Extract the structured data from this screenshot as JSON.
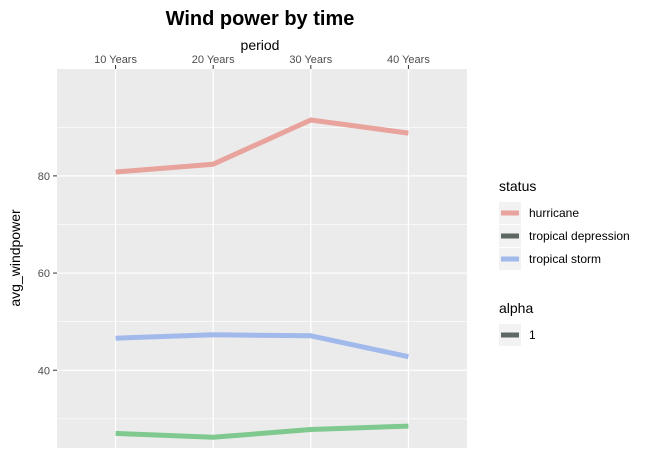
{
  "chart_data": {
    "type": "line",
    "title": "Wind power by time",
    "xlabel": "period",
    "ylabel": "avg_windpower",
    "x_axis_position": "top",
    "categories": [
      "10 Years",
      "20 Years",
      "30 Years",
      "40 Years"
    ],
    "ylim": [
      24,
      102
    ],
    "yticks": [
      40,
      60,
      80
    ],
    "grid": true,
    "legend_position": "right",
    "series": [
      {
        "name": "hurricane",
        "values": [
          80.8,
          82.4,
          91.5,
          88.8
        ],
        "color": "#e8a39c"
      },
      {
        "name": "tropical depression",
        "values": [
          27.0,
          26.2,
          27.8,
          28.5
        ],
        "color": "#7fc98f"
      },
      {
        "name": "tropical storm",
        "values": [
          46.6,
          47.3,
          47.1,
          42.8
        ],
        "color": "#a2b9ec"
      }
    ],
    "legends": [
      {
        "title": "status",
        "items": [
          {
            "label": "hurricane",
            "color": "#e8a39c"
          },
          {
            "label": "tropical depression",
            "color": "#5e6863"
          },
          {
            "label": "tropical storm",
            "color": "#a2b9ec"
          }
        ]
      },
      {
        "title": "alpha",
        "items": [
          {
            "label": "1",
            "color": "#5e6863"
          }
        ]
      }
    ]
  }
}
